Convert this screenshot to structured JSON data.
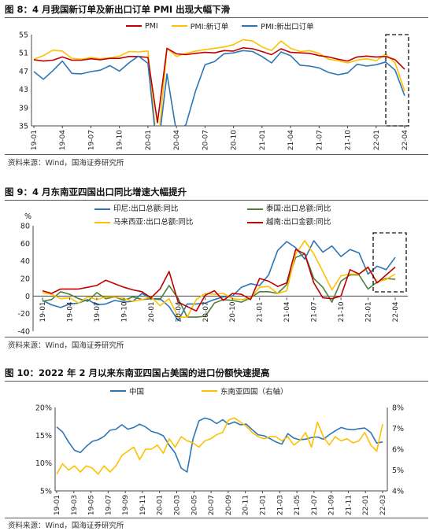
{
  "sections": [
    {
      "title": "图 8：4 月我国新订单及新出口订单 PMI 出现大幅下滑",
      "source": "资料来源：Wind，国海证券研究所"
    },
    {
      "title": "图 9：4 月东南亚四国出口同比增速大幅提升",
      "source": "资料来源：Wind，国海证券研究所"
    },
    {
      "title": "图 10：2022 年 2 月以来东南亚四国占美国的进口份额快速提高",
      "source": "资料来源：Wind，国海证券研究所"
    }
  ],
  "colors": {
    "red": "#c00000",
    "yellow": "#ffc000",
    "blue": "#2e75b6",
    "green": "#4f7f3a",
    "axis": "#444444"
  },
  "chart_data": [
    {
      "type": "line",
      "x_labels": [
        "19-01",
        "19-04",
        "19-07",
        "19-10",
        "20-01",
        "20-04",
        "20-07",
        "20-10",
        "21-01",
        "21-04",
        "21-07",
        "21-10",
        "22-01",
        "22-04"
      ],
      "ylim": [
        35,
        55
      ],
      "yticks": [
        35,
        39,
        43,
        47,
        51,
        55
      ],
      "series": [
        {
          "name": "PMI",
          "color": "#c00000",
          "values": [
            49.5,
            49.2,
            49.4,
            50.1,
            49.4,
            49.4,
            49.7,
            49.5,
            49.8,
            49.8,
            50.2,
            50.2,
            50.0,
            35.7,
            52.0,
            50.8,
            50.6,
            50.9,
            51.1,
            51.0,
            51.5,
            51.4,
            52.1,
            51.9,
            51.3,
            50.6,
            51.9,
            51.1,
            51.0,
            50.9,
            50.4,
            50.1,
            49.6,
            49.2,
            50.1,
            50.3,
            50.1,
            50.2,
            49.5,
            47.4
          ]
        },
        {
          "name": "PMI:新订单",
          "color": "#ffc000",
          "values": [
            49.6,
            50.4,
            51.6,
            51.4,
            49.8,
            49.6,
            50.0,
            49.7,
            49.9,
            50.3,
            51.3,
            51.2,
            51.4,
            29.3,
            52.0,
            50.2,
            50.9,
            51.4,
            51.7,
            52.0,
            52.3,
            52.8,
            53.9,
            53.6,
            52.3,
            51.5,
            53.6,
            52.0,
            51.3,
            51.5,
            50.9,
            49.6,
            49.3,
            48.8,
            49.4,
            49.7,
            49.3,
            50.7,
            48.8,
            42.6
          ]
        },
        {
          "name": "PMI:新出口订单",
          "color": "#2e75b6",
          "values": [
            46.9,
            45.2,
            47.1,
            49.2,
            46.5,
            46.4,
            46.9,
            47.2,
            48.2,
            47.0,
            48.8,
            50.3,
            48.7,
            28.7,
            46.4,
            33.5,
            35.3,
            42.6,
            48.4,
            49.1,
            50.8,
            51.0,
            51.5,
            51.3,
            50.2,
            48.8,
            51.2,
            50.4,
            48.3,
            48.1,
            47.7,
            46.7,
            46.2,
            46.6,
            48.5,
            48.1,
            48.4,
            49.0,
            47.2,
            41.6
          ]
        }
      ]
    },
    {
      "type": "line",
      "x_labels": [
        "19-01",
        "19-04",
        "19-07",
        "19-10",
        "20-01",
        "20-04",
        "20-07",
        "20-10",
        "21-01",
        "21-04",
        "21-07",
        "21-10",
        "22-01",
        "22-04"
      ],
      "ylabel": "%",
      "ylim": [
        -40,
        80
      ],
      "yticks": [
        -40,
        -20,
        0,
        20,
        40,
        60,
        80
      ],
      "series": [
        {
          "name": "印尼:出口总额:同比",
          "color": "#2e75b6",
          "values": [
            -5,
            -10,
            -13,
            -9,
            -8,
            -4,
            -10,
            -9,
            -5,
            -7,
            -6,
            3,
            -3,
            -3,
            -12,
            -28,
            -9,
            -9,
            -8,
            -4,
            -1,
            0,
            10,
            14,
            12,
            24,
            52,
            62,
            55,
            42,
            63,
            50,
            57,
            45,
            53,
            49,
            25,
            34,
            30,
            44
          ]
        },
        {
          "name": "泰国:出口总额:同比",
          "color": "#4f7f3a",
          "values": [
            -6,
            -4,
            5,
            2,
            -3,
            -6,
            4,
            -3,
            -1,
            -5,
            -1,
            -4,
            -3,
            -4,
            12,
            -3,
            -24,
            -24,
            -23,
            -8,
            -4,
            -5,
            -7,
            -2,
            5,
            5,
            3,
            13,
            44,
            48,
            20,
            10,
            -7,
            17,
            24,
            24,
            8,
            16,
            20,
            19
          ]
        },
        {
          "name": "马来西亚:出口总额:同比",
          "color": "#ffc000",
          "values": [
            4,
            2,
            -3,
            -2,
            -8,
            -1,
            -4,
            -1,
            -1,
            -3,
            -6,
            -4,
            -1,
            -11,
            -3,
            -24,
            -24,
            -4,
            3,
            2,
            3,
            -3,
            -4,
            -2,
            10,
            11,
            3,
            6,
            48,
            63,
            48,
            28,
            7,
            23,
            25,
            25,
            32,
            16,
            19,
            25
          ]
        },
        {
          "name": "越南:出口金额:同比",
          "color": "#c00000",
          "values": [
            6,
            3,
            8,
            8,
            8,
            10,
            12,
            18,
            14,
            10,
            7,
            5,
            -2,
            8,
            28,
            -7,
            -12,
            -17,
            1,
            6,
            -5,
            3,
            2,
            -4,
            20,
            17,
            11,
            15,
            53,
            48,
            15,
            -2,
            -3,
            0,
            30,
            25,
            33,
            15,
            24,
            33
          ]
        }
      ]
    },
    {
      "type": "line",
      "x_labels": [
        "19-01",
        "19-03",
        "19-05",
        "19-07",
        "19-09",
        "19-11",
        "20-01",
        "20-03",
        "20-05",
        "20-07",
        "20-09",
        "20-11",
        "21-01",
        "21-03",
        "21-05",
        "21-07",
        "21-09",
        "21-11",
        "22-01",
        "22-03"
      ],
      "ylim_left": [
        5,
        20
      ],
      "yticks_left": [
        "5%",
        "10%",
        "15%",
        "20%"
      ],
      "ylim_right": [
        4,
        8
      ],
      "yticks_right": [
        "4%",
        "5%",
        "6%",
        "7%",
        "8%"
      ],
      "series": [
        {
          "name": "中国",
          "color": "#2e75b6",
          "axis": "left",
          "values": [
            16.5,
            15.6,
            13.8,
            12.3,
            11.9,
            13.0,
            13.9,
            14.2,
            14.8,
            15.9,
            16.1,
            16.9,
            16.1,
            16.4,
            17.0,
            16.5,
            15.7,
            15.4,
            14.9,
            13.2,
            11.8,
            9.1,
            8.4,
            14.3,
            17.6,
            18.1,
            17.8,
            17.1,
            17.8,
            17.0,
            17.4,
            16.9,
            17.0,
            16.0,
            15.1,
            14.9,
            14.4,
            13.8,
            13.4,
            15.3,
            14.5,
            14.2,
            14.3,
            14.6,
            14.7,
            14.3,
            15.1,
            15.8,
            16.4,
            16.1,
            16.0,
            16.2,
            16.3,
            15.5,
            13.6,
            13.8
          ]
        },
        {
          "name": "东南亚四国（右轴）",
          "color": "#ffc000",
          "axis": "right",
          "values": [
            4.8,
            5.3,
            5.0,
            5.2,
            4.9,
            5.2,
            5.1,
            4.8,
            5.2,
            4.9,
            5.2,
            5.7,
            5.9,
            6.1,
            5.5,
            6.0,
            6.0,
            6.2,
            5.8,
            6.5,
            6.1,
            6.6,
            6.4,
            6.3,
            6.1,
            6.4,
            6.5,
            6.7,
            6.8,
            7.4,
            7.5,
            7.3,
            7.1,
            6.8,
            6.6,
            6.5,
            6.6,
            6.6,
            6.4,
            6.6,
            6.2,
            6.4,
            6.8,
            6.1,
            7.3,
            6.6,
            6.2,
            6.6,
            6.4,
            6.5,
            6.3,
            6.4,
            6.8,
            6.2,
            5.9,
            7.2
          ]
        }
      ]
    }
  ]
}
